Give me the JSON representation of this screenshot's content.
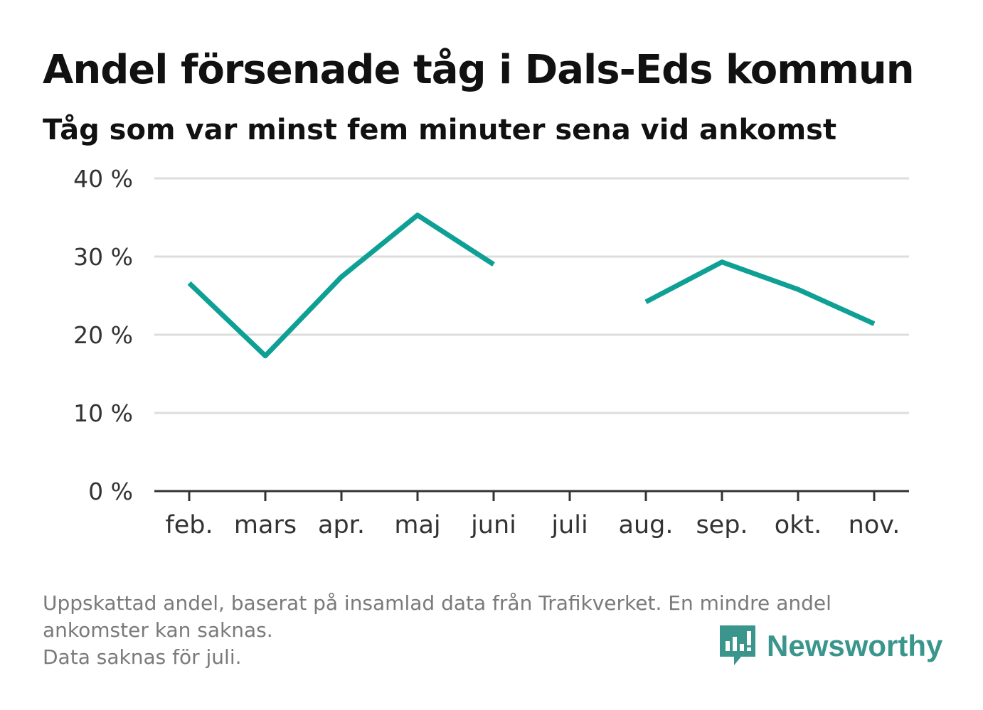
{
  "header": {
    "title": "Andel försenade tåg i Dals-Eds kommun",
    "subtitle": "Tåg som var minst fem minuter sena vid ankomst"
  },
  "chart_data": {
    "type": "line",
    "categories": [
      "feb.",
      "mars",
      "apr.",
      "maj",
      "juni",
      "juli",
      "aug.",
      "sep.",
      "okt.",
      "nov."
    ],
    "series": [
      {
        "values": [
          26.6,
          17.3,
          27.4,
          35.3,
          29.0,
          null,
          24.2,
          29.3,
          25.8,
          21.4
        ]
      }
    ],
    "y_ticks": [
      0,
      10,
      20,
      30,
      40
    ],
    "y_tick_labels": [
      "0 %",
      "10 %",
      "20 %",
      "30 %",
      "40 %"
    ],
    "ylim": [
      0,
      40
    ],
    "grid": true,
    "line_color": "#0fa095"
  },
  "footnote": {
    "line1": "Uppskattad andel, baserat på insamlad data från Trafikverket. En mindre andel",
    "line2": "ankomster kan saknas.",
    "line3": "Data saknas för juli."
  },
  "brand": {
    "name": "Newsworthy",
    "icon": "newsworthy-logo-icon",
    "color": "#3a968c"
  }
}
